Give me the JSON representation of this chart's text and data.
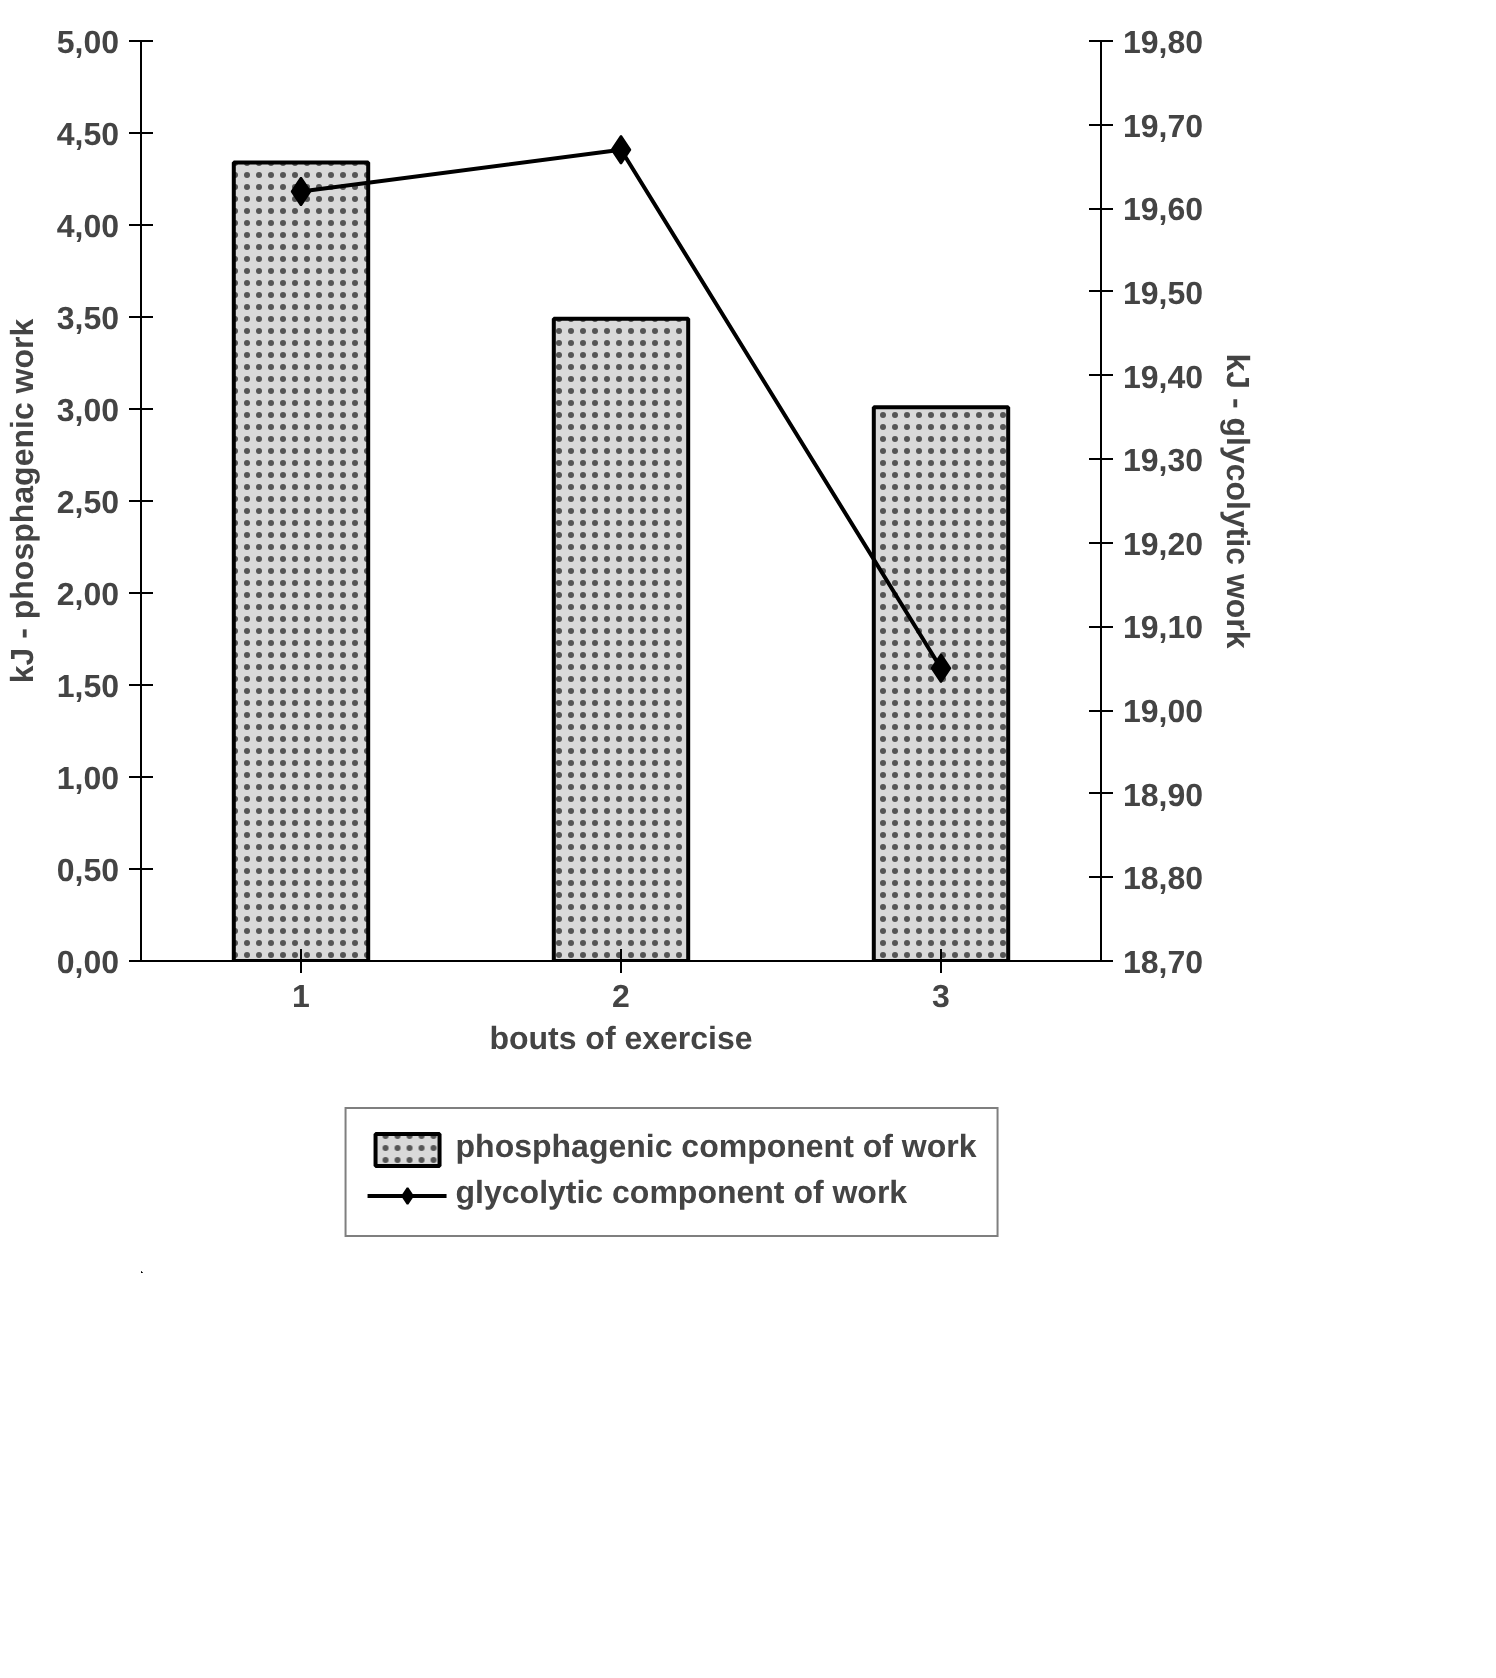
{
  "chart_data": {
    "type": "bar",
    "xlabel": "bouts of exercise",
    "ylabel": "kJ - phosphagenic work",
    "y2label": "kJ - glycolytic work",
    "categories": [
      "1",
      "2",
      "3"
    ],
    "series": [
      {
        "name": "phosphagenic component of work",
        "color": "#d9d9d9",
        "values": [
          4.34,
          3.49,
          3.01
        ]
      },
      {
        "name": "glycolytic component of work",
        "type": "line",
        "axis": "y2",
        "color": "#000000",
        "marker": "diamond",
        "values": [
          19.62,
          19.67,
          19.05
        ]
      }
    ],
    "ylim": [
      0,
      5
    ],
    "yticks": [
      {
        "value": 0,
        "label": "0,00"
      },
      {
        "value": 0.5,
        "label": "0,50"
      },
      {
        "value": 1,
        "label": "1,00"
      },
      {
        "value": 1.5,
        "label": "1,50"
      },
      {
        "value": 2,
        "label": "2,00"
      },
      {
        "value": 2.5,
        "label": "2,50"
      },
      {
        "value": 3,
        "label": "3,00"
      },
      {
        "value": 3.5,
        "label": "3,50"
      },
      {
        "value": 4,
        "label": "4,00"
      },
      {
        "value": 4.5,
        "label": "4,50"
      },
      {
        "value": 5,
        "label": "5,00"
      }
    ],
    "y2lim": [
      18.7,
      19.8
    ],
    "y2ticks": [
      {
        "value": 18.7,
        "label": "18,70"
      },
      {
        "value": 18.8,
        "label": "18,80"
      },
      {
        "value": 18.9,
        "label": "18,90"
      },
      {
        "value": 19.0,
        "label": "19,00"
      },
      {
        "value": 19.1,
        "label": "19,10"
      },
      {
        "value": 19.2,
        "label": "19,20"
      },
      {
        "value": 19.3,
        "label": "19,30"
      },
      {
        "value": 19.4,
        "label": "19,40"
      },
      {
        "value": 19.5,
        "label": "19,50"
      },
      {
        "value": 19.6,
        "label": "19,60"
      },
      {
        "value": 19.7,
        "label": "19,70"
      },
      {
        "value": 19.8,
        "label": "19,80"
      }
    ],
    "legend": "bottom",
    "grid": false
  }
}
